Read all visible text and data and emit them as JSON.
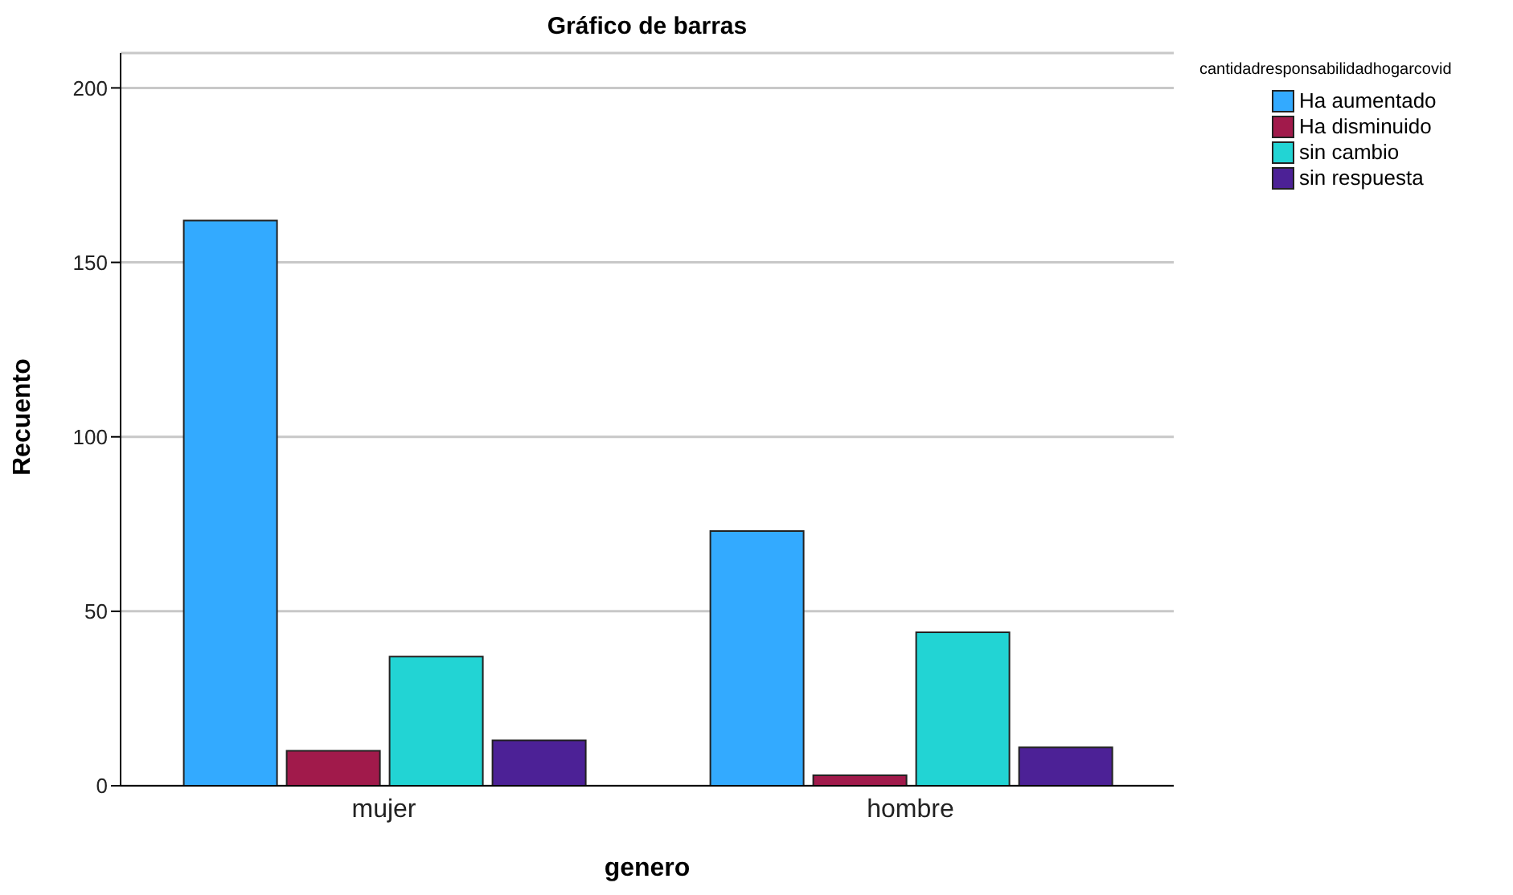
{
  "chart_data": {
    "type": "bar",
    "title": "Gráfico de barras",
    "xlabel": "genero",
    "ylabel": "Recuento",
    "legend_title": "cantidadresponsabilidadhogarcovid",
    "categories": [
      "mujer",
      "hombre"
    ],
    "series": [
      {
        "name": "Ha aumentado",
        "color": "#33aaff",
        "values": [
          162,
          73
        ]
      },
      {
        "name": "Ha disminuido",
        "color": "#a11a4b",
        "values": [
          10,
          3
        ]
      },
      {
        "name": "sin cambio",
        "color": "#22d4d4",
        "values": [
          37,
          44
        ]
      },
      {
        "name": "sin respuesta",
        "color": "#4c2196",
        "values": [
          13,
          11
        ]
      }
    ],
    "ylim": [
      0,
      210
    ],
    "yticks": [
      0,
      50,
      100,
      150,
      200
    ],
    "grid": "y",
    "legend": "top right"
  }
}
